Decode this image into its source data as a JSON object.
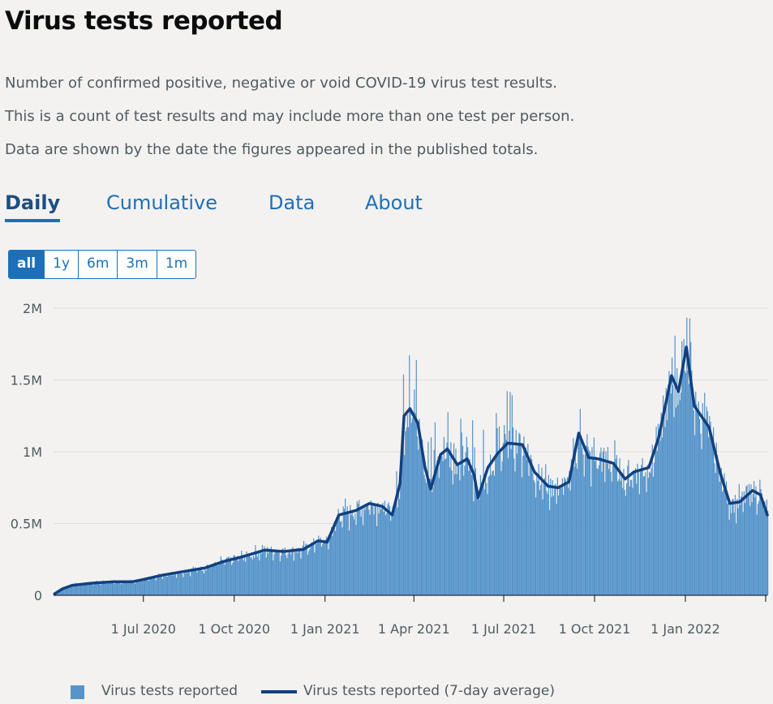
{
  "page": {
    "title": "Virus tests reported",
    "description": [
      "Number of confirmed positive, negative or void COVID-19 virus test results.",
      "This is a count of test results and may include more than one test per person.",
      "Data are shown by the date the figures appeared in the published totals."
    ]
  },
  "tabs": [
    "Daily",
    "Cumulative",
    "Data",
    "About"
  ],
  "ranges": [
    "all",
    "1y",
    "6m",
    "3m",
    "1m"
  ],
  "colors": {
    "bars": "#5694ca",
    "line": "#12407f",
    "grid": "#dedede",
    "accent": "#1d70b8"
  },
  "chart_data": {
    "type": "bar",
    "title": "Virus tests reported",
    "xlabel": "",
    "ylabel": "",
    "ylim": [
      0,
      2000000
    ],
    "y_ticks": [
      {
        "value": 0,
        "label": "0"
      },
      {
        "value": 500000,
        "label": "0.5M"
      },
      {
        "value": 1000000,
        "label": "1M"
      },
      {
        "value": 1500000,
        "label": "1.5M"
      },
      {
        "value": 2000000,
        "label": "2M"
      }
    ],
    "x_range": [
      "2020-04-01",
      "2022-03-25"
    ],
    "x_ticks": [
      {
        "date": "2020-07-01",
        "label": "1 Jul 2020"
      },
      {
        "date": "2020-10-01",
        "label": "1 Oct 2020"
      },
      {
        "date": "2021-01-01",
        "label": "1 Jan 2021"
      },
      {
        "date": "2021-04-01",
        "label": "1 Apr 2021"
      },
      {
        "date": "2021-07-01",
        "label": "1 Jul 2021"
      },
      {
        "date": "2021-10-01",
        "label": "1 Oct 2021"
      },
      {
        "date": "2022-01-01",
        "label": "1 Jan 2022"
      }
    ],
    "legend": [
      "Virus tests reported",
      "Virus tests reported (7-day average)"
    ],
    "series_points": [
      {
        "date": "2020-04-02",
        "value": 10000
      },
      {
        "date": "2020-04-10",
        "value": 45000
      },
      {
        "date": "2020-04-20",
        "value": 70000
      },
      {
        "date": "2020-05-10",
        "value": 85000
      },
      {
        "date": "2020-06-01",
        "value": 95000
      },
      {
        "date": "2020-06-20",
        "value": 95000
      },
      {
        "date": "2020-07-01",
        "value": 110000
      },
      {
        "date": "2020-07-20",
        "value": 140000
      },
      {
        "date": "2020-08-10",
        "value": 165000
      },
      {
        "date": "2020-09-01",
        "value": 190000
      },
      {
        "date": "2020-09-20",
        "value": 235000
      },
      {
        "date": "2020-10-10",
        "value": 270000
      },
      {
        "date": "2020-11-01",
        "value": 315000
      },
      {
        "date": "2020-11-20",
        "value": 305000
      },
      {
        "date": "2020-12-10",
        "value": 320000
      },
      {
        "date": "2020-12-25",
        "value": 380000
      },
      {
        "date": "2021-01-03",
        "value": 370000
      },
      {
        "date": "2021-01-15",
        "value": 560000
      },
      {
        "date": "2021-02-01",
        "value": 590000
      },
      {
        "date": "2021-02-15",
        "value": 640000
      },
      {
        "date": "2021-02-28",
        "value": 620000
      },
      {
        "date": "2021-03-10",
        "value": 560000
      },
      {
        "date": "2021-03-18",
        "value": 780000
      },
      {
        "date": "2021-03-22",
        "value": 1250000
      },
      {
        "date": "2021-03-28",
        "value": 1300000
      },
      {
        "date": "2021-04-05",
        "value": 1200000
      },
      {
        "date": "2021-04-12",
        "value": 900000
      },
      {
        "date": "2021-04-18",
        "value": 740000
      },
      {
        "date": "2021-04-28",
        "value": 980000
      },
      {
        "date": "2021-05-05",
        "value": 1020000
      },
      {
        "date": "2021-05-15",
        "value": 910000
      },
      {
        "date": "2021-05-25",
        "value": 950000
      },
      {
        "date": "2021-06-01",
        "value": 840000
      },
      {
        "date": "2021-06-05",
        "value": 680000
      },
      {
        "date": "2021-06-15",
        "value": 890000
      },
      {
        "date": "2021-06-25",
        "value": 990000
      },
      {
        "date": "2021-07-05",
        "value": 1060000
      },
      {
        "date": "2021-07-20",
        "value": 1050000
      },
      {
        "date": "2021-08-01",
        "value": 860000
      },
      {
        "date": "2021-08-15",
        "value": 760000
      },
      {
        "date": "2021-08-25",
        "value": 750000
      },
      {
        "date": "2021-09-05",
        "value": 790000
      },
      {
        "date": "2021-09-15",
        "value": 1130000
      },
      {
        "date": "2021-09-25",
        "value": 960000
      },
      {
        "date": "2021-10-05",
        "value": 950000
      },
      {
        "date": "2021-10-20",
        "value": 920000
      },
      {
        "date": "2021-11-01",
        "value": 810000
      },
      {
        "date": "2021-11-10",
        "value": 860000
      },
      {
        "date": "2021-11-25",
        "value": 890000
      },
      {
        "date": "2021-12-05",
        "value": 1100000
      },
      {
        "date": "2021-12-18",
        "value": 1530000
      },
      {
        "date": "2021-12-25",
        "value": 1420000
      },
      {
        "date": "2022-01-02",
        "value": 1730000
      },
      {
        "date": "2022-01-10",
        "value": 1320000
      },
      {
        "date": "2022-01-25",
        "value": 1170000
      },
      {
        "date": "2022-02-05",
        "value": 860000
      },
      {
        "date": "2022-02-15",
        "value": 640000
      },
      {
        "date": "2022-02-25",
        "value": 650000
      },
      {
        "date": "2022-03-10",
        "value": 730000
      },
      {
        "date": "2022-03-18",
        "value": 700000
      },
      {
        "date": "2022-03-25",
        "value": 560000
      }
    ]
  }
}
